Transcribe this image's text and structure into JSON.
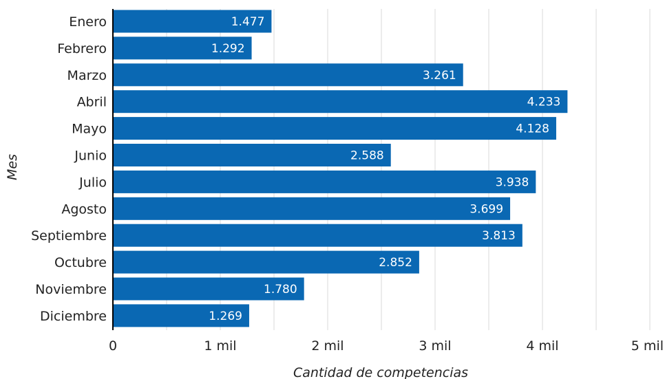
{
  "chart_data": {
    "type": "bar",
    "orientation": "horizontal",
    "categories": [
      "Enero",
      "Febrero",
      "Marzo",
      "Abril",
      "Mayo",
      "Junio",
      "Julio",
      "Agosto",
      "Septiembre",
      "Octubre",
      "Noviembre",
      "Diciembre"
    ],
    "values": [
      1477,
      1292,
      3261,
      4233,
      4128,
      2588,
      3938,
      3699,
      3813,
      2852,
      1780,
      1269
    ],
    "value_labels": [
      "1.477",
      "1.292",
      "3.261",
      "4.233",
      "4.128",
      "2.588",
      "3.938",
      "3.699",
      "3.813",
      "2.852",
      "1.780",
      "1.269"
    ],
    "xlabel": "Cantidad de competencias",
    "ylabel": "Mes",
    "xlim": [
      0,
      5000
    ],
    "xticks": [
      0,
      1000,
      2000,
      3000,
      4000,
      5000
    ],
    "xtick_labels": [
      "0",
      "1 mil",
      "2 mil",
      "3 mil",
      "4 mil",
      "5 mil"
    ],
    "grid": true,
    "bar_color": "#0a68b3",
    "grid_color": "#e6e6e6"
  }
}
